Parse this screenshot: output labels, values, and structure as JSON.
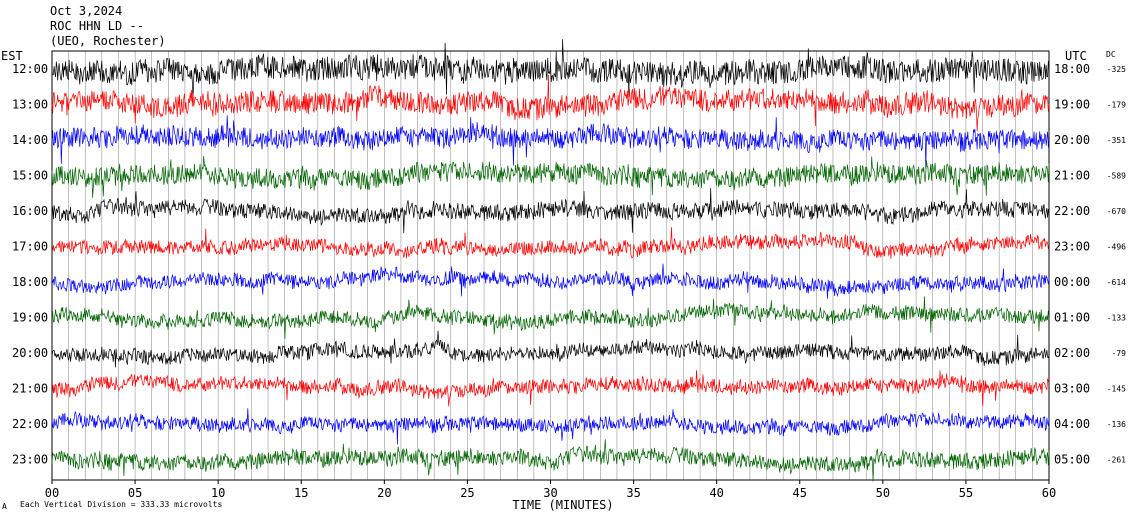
{
  "header": {
    "date": "Oct 3,2024",
    "station": "ROC HHN LD --",
    "location": "(UEO, Rochester)"
  },
  "left_timezone": "EST",
  "right_timezone": "UTC",
  "dc_header": "DC",
  "footer_note": "Each Vertical Division =  333.33 microvolts",
  "colors": {
    "trace_cycle": [
      "#000000",
      "#ff0000",
      "#0000ff",
      "#006400"
    ],
    "grid": "#808080"
  },
  "chart_data": {
    "type": "line",
    "title": "",
    "xlabel": "TIME (MINUTES)",
    "xlim": [
      0,
      60
    ],
    "x_ticks": [
      {
        "value": 0,
        "label": "00"
      },
      {
        "value": 5,
        "label": "05"
      },
      {
        "value": 10,
        "label": "10"
      },
      {
        "value": 15,
        "label": "15"
      },
      {
        "value": 20,
        "label": "20"
      },
      {
        "value": 25,
        "label": "25"
      },
      {
        "value": 30,
        "label": "30"
      },
      {
        "value": 35,
        "label": "35"
      },
      {
        "value": 40,
        "label": "40"
      },
      {
        "value": 45,
        "label": "45"
      },
      {
        "value": 50,
        "label": "50"
      },
      {
        "value": 55,
        "label": "55"
      },
      {
        "value": 60,
        "label": "60"
      }
    ],
    "rows": [
      {
        "left": "12:00",
        "right": "18:00",
        "dc": "-325"
      },
      {
        "left": "13:00",
        "right": "19:00",
        "dc": "-179"
      },
      {
        "left": "14:00",
        "right": "20:00",
        "dc": "-351"
      },
      {
        "left": "15:00",
        "right": "21:00",
        "dc": "-589"
      },
      {
        "left": "16:00",
        "right": "22:00",
        "dc": "-670"
      },
      {
        "left": "17:00",
        "right": "23:00",
        "dc": "-496"
      },
      {
        "left": "18:00",
        "right": "00:00",
        "dc": "-614"
      },
      {
        "left": "19:00",
        "right": "01:00",
        "dc": "-133"
      },
      {
        "left": "20:00",
        "right": "02:00",
        "dc": "-79"
      },
      {
        "left": "21:00",
        "right": "03:00",
        "dc": "-145"
      },
      {
        "left": "22:00",
        "right": "04:00",
        "dc": "-136"
      },
      {
        "left": "23:00",
        "right": "05:00",
        "dc": "-261"
      }
    ],
    "grid": true
  }
}
